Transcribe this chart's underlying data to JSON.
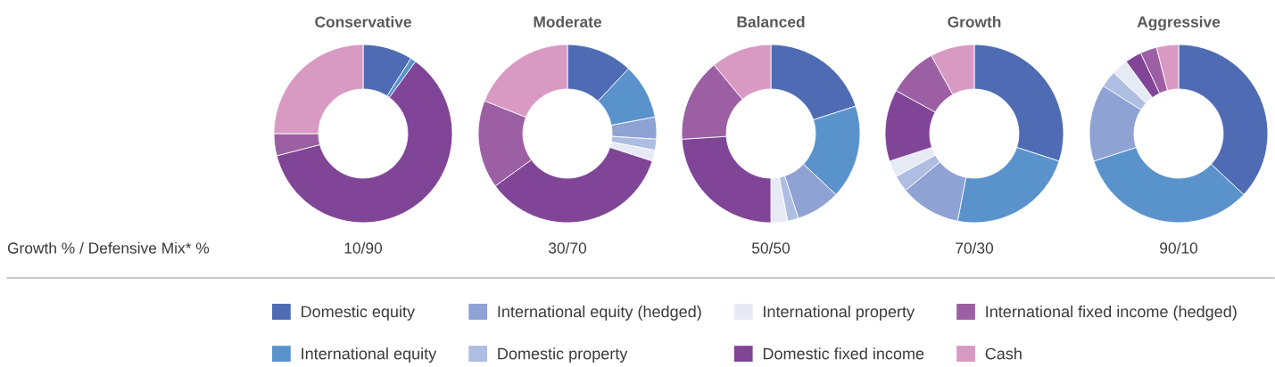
{
  "chart_data": [
    {
      "type": "donut",
      "title": "Conservative",
      "categories": [
        "Domestic equity",
        "International equity",
        "International equity (hedged)",
        "Domestic property",
        "International property",
        "Domestic fixed income",
        "International fixed income (hedged)",
        "Cash"
      ],
      "values": [
        9,
        1,
        0,
        0,
        0,
        61,
        4,
        25
      ],
      "colors": [
        "#4e6bb3",
        "#5a93cc",
        "#8fa2d4",
        "#aebde2",
        "#e6eaf5",
        "#804597",
        "#9c5fa3",
        "#d89ac3"
      ],
      "annotations": [
        "Growth % / Defensive Mix* %",
        "10/90"
      ],
      "legend": "bottom"
    },
    {
      "type": "donut",
      "title": "Moderate",
      "values": [
        12,
        10,
        4,
        2,
        2,
        35,
        16,
        19
      ],
      "colors": [
        "#4e6bb3",
        "#5a93cc",
        "#8fa2d4",
        "#aebde2",
        "#e6eaf5",
        "#804597",
        "#9c5fa3",
        "#d89ac3"
      ],
      "annotations": [
        "30/70"
      ]
    },
    {
      "type": "donut",
      "title": "Balanced",
      "values": [
        20,
        17,
        8,
        2,
        3,
        24,
        15,
        11
      ],
      "colors": [
        "#4e6bb3",
        "#5a93cc",
        "#8fa2d4",
        "#aebde2",
        "#e6eaf5",
        "#804597",
        "#9c5fa3",
        "#d89ac3"
      ],
      "annotations": [
        "50/50"
      ]
    },
    {
      "type": "donut",
      "title": "Growth",
      "values": [
        30,
        23,
        11,
        3,
        3,
        13,
        9,
        8
      ],
      "colors": [
        "#4e6bb3",
        "#5a93cc",
        "#8fa2d4",
        "#aebde2",
        "#e6eaf5",
        "#804597",
        "#9c5fa3",
        "#d89ac3"
      ],
      "annotations": [
        "70/30"
      ]
    },
    {
      "type": "donut",
      "title": "Aggressive",
      "values": [
        37,
        33,
        14,
        3,
        3,
        3,
        3,
        4
      ],
      "colors": [
        "#4e6bb3",
        "#5a93cc",
        "#8fa2d4",
        "#aebde2",
        "#e6eaf5",
        "#804597",
        "#9c5fa3",
        "#d89ac3"
      ],
      "annotations": [
        "90/10"
      ]
    }
  ]
}
